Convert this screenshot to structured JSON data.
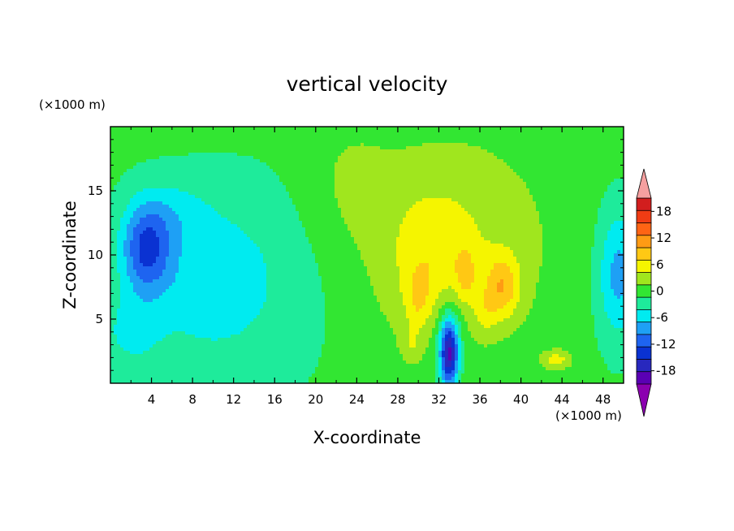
{
  "chart_data": {
    "type": "heatmap",
    "title": "vertical velocity",
    "xlabel": "X-coordinate",
    "ylabel": "Z-coordinate",
    "x_unit": "(×1000 m)",
    "y_unit": "(×1000 m)",
    "xlim": [
      0,
      50
    ],
    "ylim": [
      0,
      20
    ],
    "x_ticks": [
      "4",
      "8",
      "12",
      "16",
      "20",
      "24",
      "28",
      "32",
      "36",
      "40",
      "44",
      "48"
    ],
    "y_ticks": [
      "5",
      "10",
      "15"
    ],
    "colorbar": {
      "levels": [
        -21,
        -18,
        -15,
        -12,
        -9,
        -6,
        -3,
        0,
        3,
        6,
        9,
        12,
        15,
        18,
        21
      ],
      "labels": [
        "-18",
        "-12",
        "-6",
        "0",
        "6",
        "12",
        "18"
      ],
      "colors": [
        "#8b00b0",
        "#5a00b4",
        "#2828be",
        "#0a32d2",
        "#1e64f0",
        "#1ea0f5",
        "#00ebf0",
        "#1eeb9b",
        "#32e632",
        "#a0e61e",
        "#f5f500",
        "#ffc814",
        "#ff9b14",
        "#ff6414",
        "#f03c14",
        "#d21e1e",
        "#f5a0a0"
      ]
    },
    "features": [
      {
        "x": 3.5,
        "z": 10.5,
        "value": -13,
        "kind": "downdraft"
      },
      {
        "x": 33,
        "z": 2.3,
        "value": -13,
        "kind": "downdraft"
      },
      {
        "x": 38,
        "z": 7.5,
        "value": 14,
        "kind": "updraft"
      },
      {
        "x": 34.5,
        "z": 8.5,
        "value": 11,
        "kind": "updraft"
      },
      {
        "x": 30,
        "z": 6.5,
        "value": 10,
        "kind": "updraft"
      },
      {
        "x": 49.5,
        "z": 8.5,
        "value": -10,
        "kind": "downdraft"
      }
    ]
  }
}
